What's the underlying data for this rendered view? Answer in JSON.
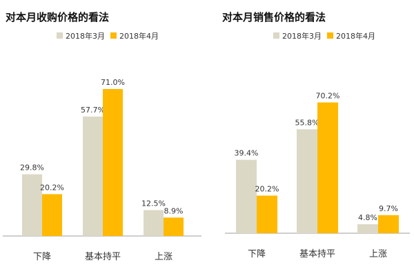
{
  "colors": {
    "march": "#dcd8c6",
    "april": "#ffb900",
    "axis": "#9e9e9e",
    "text": "#333333"
  },
  "chart_data": [
    {
      "type": "bar",
      "title": "对本月收购价格的看法",
      "categories": [
        "下降",
        "基本持平",
        "上涨"
      ],
      "series": [
        {
          "name": "2018年3月",
          "values": [
            29.8,
            57.7,
            12.5
          ],
          "labels": [
            "29.8%",
            "57.7%",
            "12.5%"
          ]
        },
        {
          "name": "2018年4月",
          "values": [
            20.2,
            71.0,
            8.9
          ],
          "labels": [
            "20.2%",
            "71.0%",
            "8.9%"
          ]
        }
      ],
      "ylim": [
        0,
        80
      ],
      "grid": false,
      "legend": "top"
    },
    {
      "type": "bar",
      "title": "对本月销售价格的看法",
      "categories": [
        "下降",
        "基本持平",
        "上涨"
      ],
      "series": [
        {
          "name": "2018年3月",
          "values": [
            39.4,
            55.8,
            4.8
          ],
          "labels": [
            "39.4%",
            "55.8%",
            "4.8%"
          ]
        },
        {
          "name": "2018年4月",
          "values": [
            20.2,
            70.2,
            9.7
          ],
          "labels": [
            "20.2%",
            "70.2%",
            "9.7%"
          ]
        }
      ],
      "ylim": [
        0,
        80
      ],
      "grid": false,
      "legend": "top"
    }
  ]
}
